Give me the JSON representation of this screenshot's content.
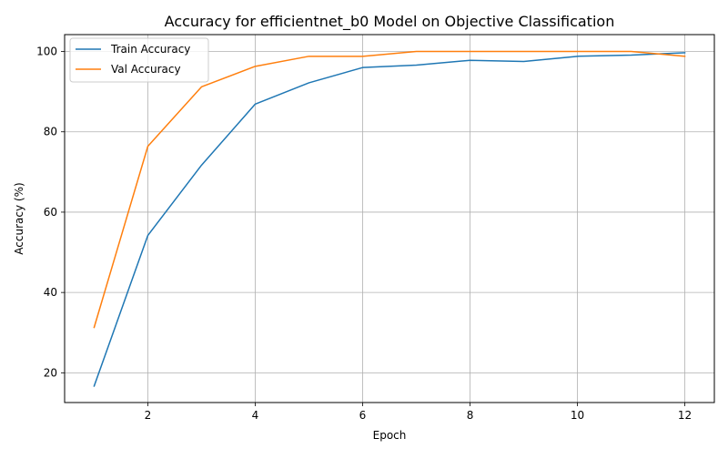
{
  "chart_data": {
    "type": "line",
    "title": "Accuracy for efficientnet_b0 Model on Objective Classification",
    "xlabel": "Epoch",
    "ylabel": "Accuracy (%)",
    "xlim": [
      0.45,
      12.55
    ],
    "ylim": [
      12.6,
      104.2
    ],
    "x_ticks": [
      2,
      4,
      6,
      8,
      10,
      12
    ],
    "y_ticks": [
      20,
      40,
      60,
      80,
      100
    ],
    "grid": true,
    "legend_position": "upper-left",
    "x": [
      1,
      2,
      3,
      4,
      5,
      6,
      7,
      8,
      9,
      10,
      11,
      12
    ],
    "series": [
      {
        "name": "Train Accuracy",
        "color": "#1f77b4",
        "values": [
          16.7,
          54.2,
          71.7,
          86.9,
          92.2,
          96.0,
          96.6,
          97.8,
          97.5,
          98.8,
          99.1,
          99.7
        ]
      },
      {
        "name": "Val Accuracy",
        "color": "#ff7f0e",
        "values": [
          31.3,
          76.4,
          91.2,
          96.3,
          98.8,
          98.8,
          100.0,
          100.0,
          100.0,
          100.0,
          100.0,
          98.8
        ]
      }
    ]
  }
}
